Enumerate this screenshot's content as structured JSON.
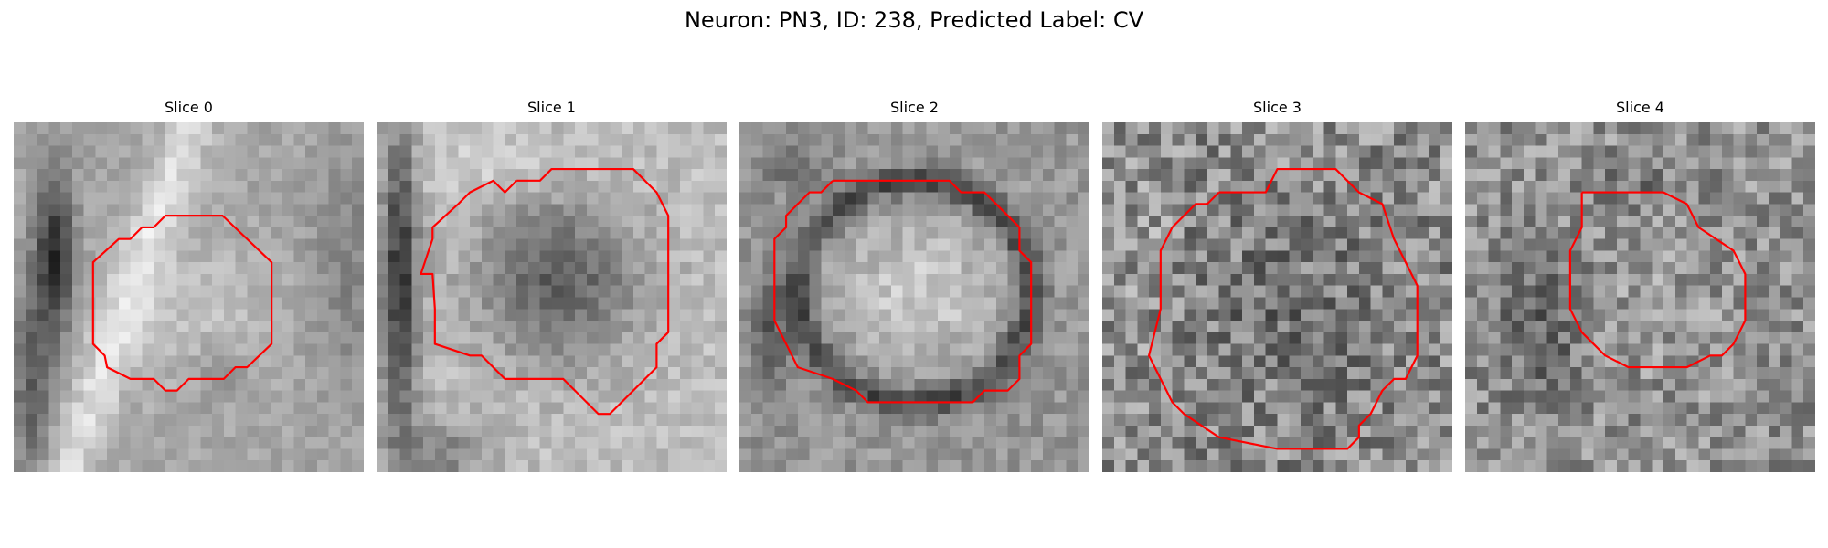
{
  "figure": {
    "title": "Neuron: PN3, ID: 238, Predicted Label: CV",
    "outline_color": "#ff0000"
  },
  "slices": [
    {
      "label": "Slice 0",
      "pattern": "slice0"
    },
    {
      "label": "Slice 1",
      "pattern": "slice1"
    },
    {
      "label": "Slice 2",
      "pattern": "slice2"
    },
    {
      "label": "Slice 3",
      "pattern": "slice3"
    },
    {
      "label": "Slice 4",
      "pattern": "slice4"
    }
  ]
}
